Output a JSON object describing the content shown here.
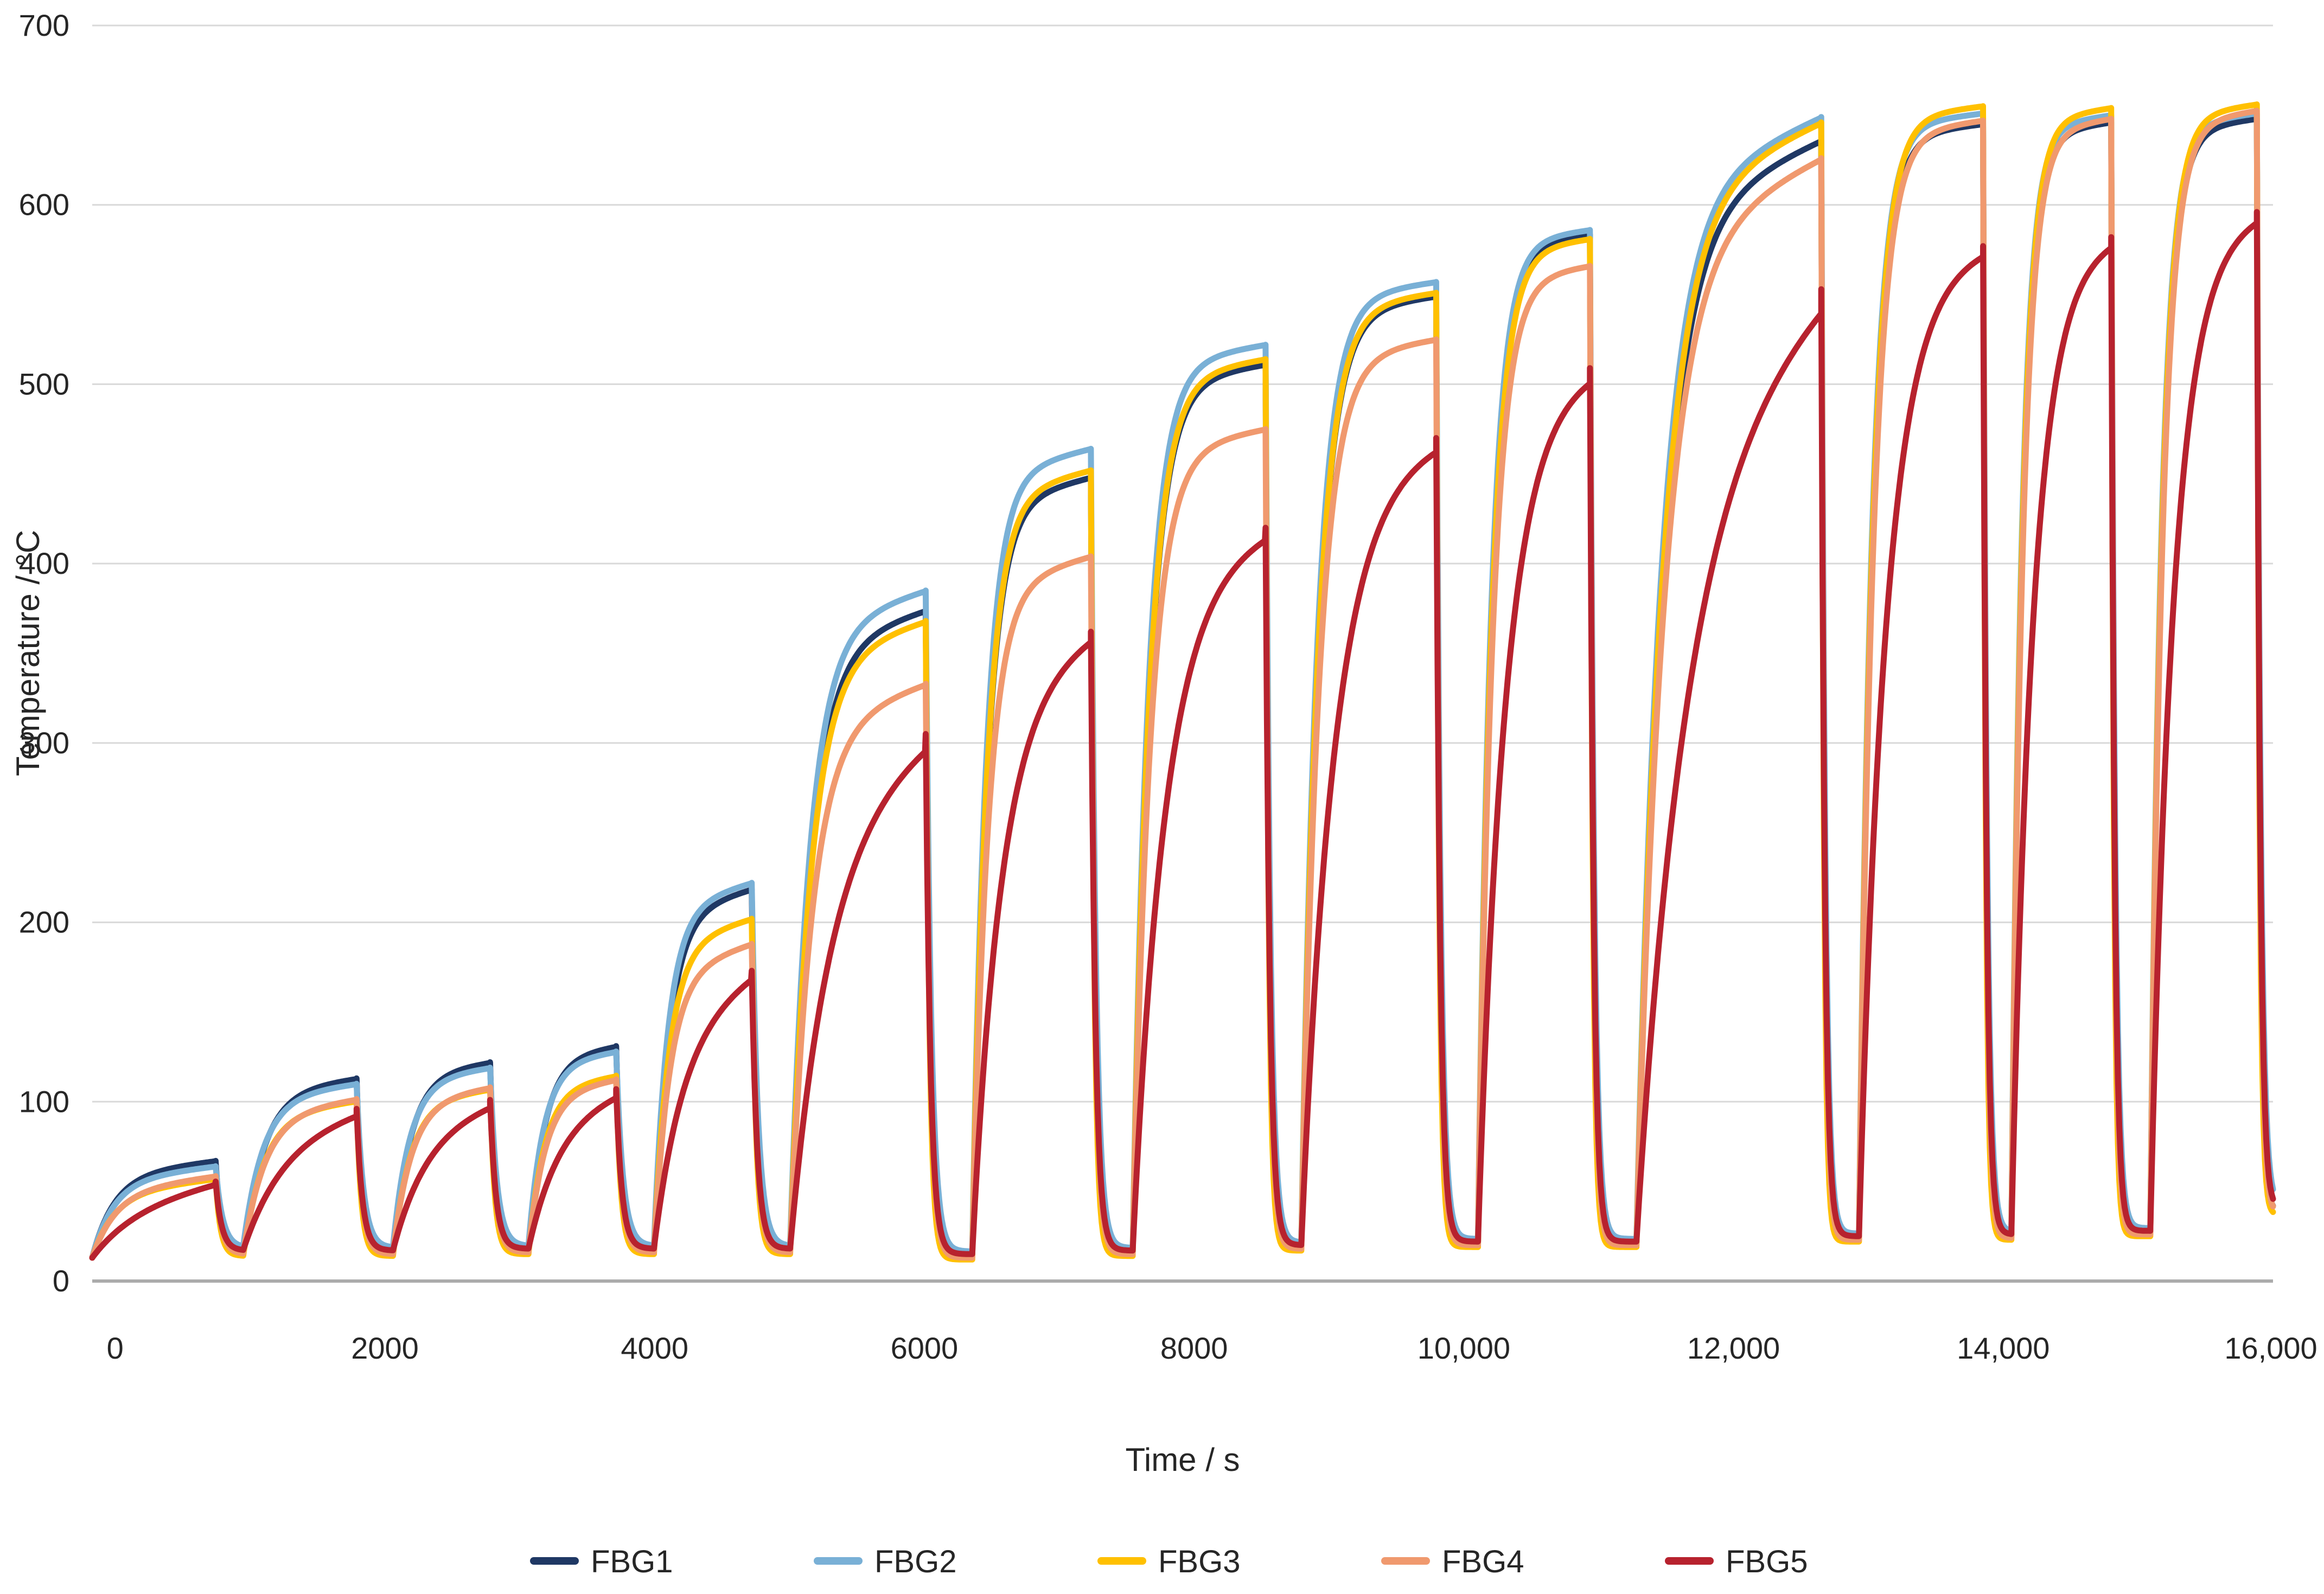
{
  "chart_data": {
    "type": "line",
    "title": "",
    "xlabel": "Time / s",
    "ylabel": "Temperature  /  °C",
    "grid": "horizontal-only",
    "legend_position": "bottom-center",
    "xlim": [
      -170,
      16000
    ],
    "ylim": [
      0,
      700
    ],
    "x_ticks": [
      0,
      2000,
      4000,
      6000,
      8000,
      10000,
      12000,
      14000,
      16000
    ],
    "x_tick_labels": [
      "0",
      "2000",
      "4000",
      "6000",
      "8000",
      "10,000",
      "12,000",
      "14,000",
      "16,000"
    ],
    "y_ticks": [
      0,
      100,
      200,
      300,
      400,
      500,
      600,
      700
    ],
    "y_tick_labels": [
      "0",
      "100",
      "200",
      "300",
      "400",
      "500",
      "600",
      "700"
    ],
    "start_temp": 13,
    "series": [
      {
        "name": "FBG1",
        "color": "#1F3864",
        "decay_tau": 40,
        "k_scale": 1.0,
        "creep_scale": 1.0,
        "floor_offset": -1.0
      },
      {
        "name": "FBG2",
        "color": "#79B0D6",
        "decay_tau": 52,
        "k_scale": 1.05,
        "creep_scale": 1.0,
        "floor_offset": 1.5
      },
      {
        "name": "FBG3",
        "color": "#FFC000",
        "decay_tau": 36,
        "k_scale": 1.0,
        "creep_scale": 1.0,
        "floor_offset": -3.0
      },
      {
        "name": "FBG4",
        "color": "#F0996E",
        "decay_tau": 42,
        "k_scale": 0.95,
        "creep_scale": 1.1,
        "floor_offset": -2.0
      },
      {
        "name": "FBG5",
        "color": "#B7222E",
        "decay_tau": 44,
        "k_scale": 0.5,
        "creep_scale": 1.8,
        "floor_offset": 0.0
      }
    ],
    "pulses": [
      {
        "t_start": -170,
        "t_end": 745,
        "peaks": [
          67,
          64,
          57,
          58.5,
          55.5
        ],
        "k": 5.5,
        "creep": 8,
        "trough_after": 17
      },
      {
        "t_start": 950,
        "t_end": 1790,
        "peaks": [
          113,
          110,
          100.5,
          101.5,
          96
        ],
        "k": 5.5,
        "creep": 8,
        "trough_after": 17
      },
      {
        "t_start": 2060,
        "t_end": 2780,
        "peaks": [
          122,
          119,
          107,
          108,
          101
        ],
        "k": 5.5,
        "creep": 7,
        "trough_after": 18
      },
      {
        "t_start": 3065,
        "t_end": 3715,
        "peaks": [
          131,
          128,
          114.5,
          112.5,
          107
        ],
        "k": 5.5,
        "creep": 7,
        "trough_after": 18
      },
      {
        "t_start": 3995,
        "t_end": 4720,
        "peaks": [
          218.5,
          222,
          202,
          188,
          173
        ],
        "k": 6.5,
        "creep": 15,
        "trough_after": 18
      },
      {
        "t_start": 5005,
        "t_end": 6010,
        "peaks": [
          374,
          385,
          368,
          333,
          305
        ],
        "k": 6.5,
        "creep": 22,
        "trough_after": 15
      },
      {
        "t_start": 6355,
        "t_end": 7235,
        "peaks": [
          448,
          464,
          452,
          404,
          362
        ],
        "k": 8,
        "creep": 16,
        "trough_after": 17
      },
      {
        "t_start": 7545,
        "t_end": 8530,
        "peaks": [
          511,
          522,
          514,
          475,
          420
        ],
        "k": 8,
        "creep": 12,
        "trough_after": 20
      },
      {
        "t_start": 8795,
        "t_end": 9795,
        "peaks": [
          549,
          557,
          551,
          525,
          470
        ],
        "k": 8,
        "creep": 10,
        "trough_after": 22
      },
      {
        "t_start": 10105,
        "t_end": 10935,
        "peaks": [
          583.5,
          586,
          581,
          566,
          509
        ],
        "k": 8,
        "creep": 8,
        "trough_after": 22
      },
      {
        "t_start": 11280,
        "t_end": 12650,
        "peaks": [
          636,
          649,
          646,
          626,
          553
        ],
        "k": 7,
        "creep": 45,
        "trough_after": 25
      },
      {
        "t_start": 12930,
        "t_end": 13850,
        "peaks": [
          645,
          651,
          655,
          647,
          577
        ],
        "k": 9,
        "creep": 8,
        "trough_after": 26
      },
      {
        "t_start": 14060,
        "t_end": 14800,
        "peaks": [
          646,
          650,
          654,
          648,
          582
        ],
        "k": 9,
        "creep": 8,
        "trough_after": 28
      },
      {
        "t_start": 15090,
        "t_end": 15880,
        "peaks": [
          648,
          651,
          656,
          652.5,
          596
        ],
        "k": 9,
        "creep": 8,
        "trough_after": 40
      }
    ]
  },
  "legend": {
    "items": [
      {
        "label": "FBG1",
        "color": "#1F3864"
      },
      {
        "label": "FBG2",
        "color": "#79B0D6"
      },
      {
        "label": "FBG3",
        "color": "#FFC000"
      },
      {
        "label": "FBG4",
        "color": "#F0996E"
      },
      {
        "label": "FBG5",
        "color": "#B7222E"
      }
    ]
  },
  "colors": {
    "background": "#ffffff",
    "gridline": "#D9D9D9",
    "axis_line": "#ABABAB",
    "tick_text": "#262626"
  }
}
